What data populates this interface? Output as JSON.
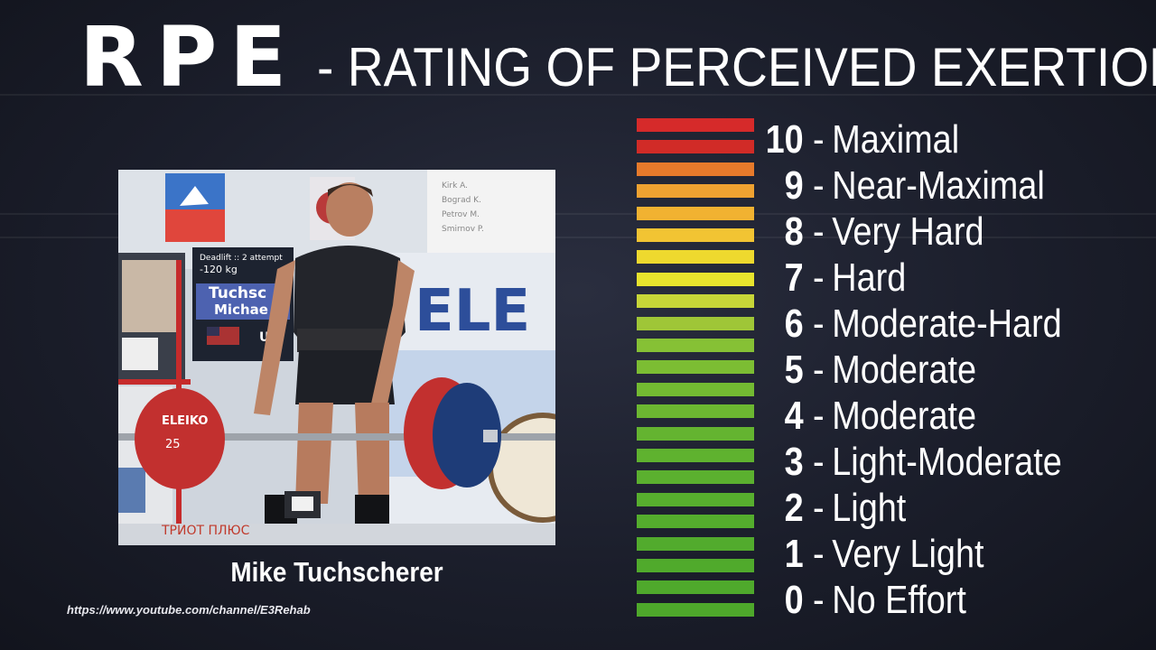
{
  "header": {
    "title_abbr": "RPE",
    "title_full": "- RATING OF PERCEIVED EXERTION"
  },
  "photo": {
    "subject": "Mike Tuchscherer",
    "scoreboard": {
      "line1": "Deadlift :: 2 attempt",
      "line2": "-120 kg",
      "name1": "Tuchsc",
      "name2": "Michae",
      "country": "US"
    },
    "banner_text": "ELE",
    "plate_brand": "ELEIKO",
    "plate_weight": "25",
    "bottom_banner": "ТРИОТ ПЛЮС",
    "right_notice": [
      "Kirk A.",
      "Bograd K.",
      "Petrov M.",
      "Smirnov P."
    ]
  },
  "caption": "Mike Tuchscherer",
  "source_url": "https://www.youtube.com/channel/E3Rehab",
  "scale": {
    "levels": [
      {
        "num": "10",
        "label": "Maximal",
        "color": "#d42a2a"
      },
      {
        "num": "9",
        "label": "Near-Maximal",
        "color": "#ea7a2c"
      },
      {
        "num": "8",
        "label": "Very Hard",
        "color": "#f1b22f"
      },
      {
        "num": "7",
        "label": "Hard",
        "color": "#ecdc2d"
      },
      {
        "num": "6",
        "label": "Moderate-Hard",
        "color": "#a8c734"
      },
      {
        "num": "5",
        "label": "Moderate",
        "color": "#7dbd33"
      },
      {
        "num": "4",
        "label": "Moderate",
        "color": "#6ab731"
      },
      {
        "num": "3",
        "label": "Light-Moderate",
        "color": "#5fb32f"
      },
      {
        "num": "2",
        "label": "Light",
        "color": "#57ae2d"
      },
      {
        "num": "1",
        "label": "Very Light",
        "color": "#51aa2c"
      },
      {
        "num": "0",
        "label": "No Effort",
        "color": "#4ea82b"
      }
    ],
    "bar_colors": [
      "#d62a2a",
      "#d12b27",
      "#e77a2b",
      "#efa231",
      "#f1b231",
      "#f2c433",
      "#eed92e",
      "#e8e42d",
      "#c7d638",
      "#9fc637",
      "#86c135",
      "#7cbd33",
      "#73ba32",
      "#6cb731",
      "#64b430",
      "#5fb22f",
      "#5bb02f",
      "#57ae2e",
      "#54ad2d",
      "#52ab2d",
      "#50aa2c",
      "#4fa92c",
      "#4ea82b"
    ]
  }
}
